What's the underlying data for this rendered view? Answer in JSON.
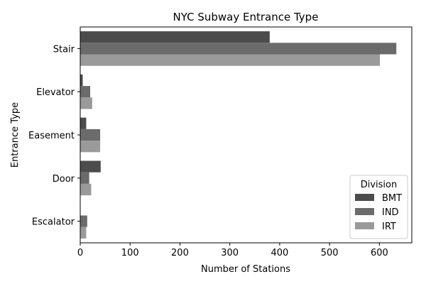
{
  "chart_data": {
    "type": "bar",
    "orientation": "horizontal",
    "title": "NYC Subway Entrance Type",
    "xlabel": "Number of Stations",
    "ylabel": "Entrance Type",
    "categories": [
      "Stair",
      "Elevator",
      "Easement",
      "Door",
      "Escalator"
    ],
    "xlim": [
      0,
      665
    ],
    "xticks": [
      0,
      100,
      200,
      300,
      400,
      500,
      600
    ],
    "grid": false,
    "legend": {
      "title": "Division",
      "position": "bottom-right"
    },
    "series": [
      {
        "name": "BMT",
        "color": "#4c4c4c",
        "values": [
          380,
          5,
          12,
          41,
          0
        ]
      },
      {
        "name": "IND",
        "color": "#6b6b6b",
        "values": [
          634,
          20,
          40,
          18,
          14
        ]
      },
      {
        "name": "IRT",
        "color": "#9a9a9a",
        "values": [
          601,
          24,
          40,
          22,
          12
        ]
      }
    ]
  }
}
